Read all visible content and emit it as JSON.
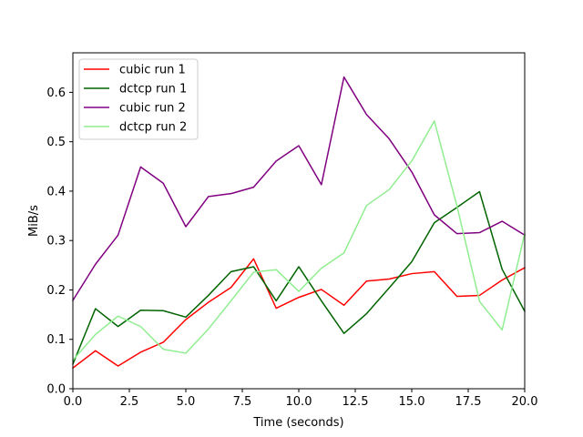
{
  "chart_data": {
    "type": "line",
    "xlabel": "Time (seconds)",
    "ylabel": "MiB/s",
    "xlim": [
      0,
      20
    ],
    "ylim": [
      0,
      0.68
    ],
    "xticks": [
      0,
      2.5,
      5,
      7.5,
      10,
      12.5,
      15,
      17.5,
      20
    ],
    "xtick_labels": [
      "0.0",
      "2.5",
      "5.0",
      "7.5",
      "10.0",
      "12.5",
      "15.0",
      "17.5",
      "20.0"
    ],
    "yticks": [
      0,
      0.1,
      0.2,
      0.3,
      0.4,
      0.5,
      0.6
    ],
    "ytick_labels": [
      "0.0",
      "0.1",
      "0.2",
      "0.3",
      "0.4",
      "0.5",
      "0.6"
    ],
    "grid": false,
    "legend_position": "top-left",
    "x": [
      0,
      1,
      2,
      3,
      4,
      5,
      6,
      7,
      8,
      9,
      10,
      11,
      12,
      13,
      14,
      15,
      16,
      17,
      18,
      19,
      20
    ],
    "series": [
      {
        "name": "cubic run 1",
        "color": "#ff0000",
        "values": [
          0.042,
          0.077,
          0.046,
          0.074,
          0.094,
          0.14,
          0.175,
          0.205,
          0.263,
          0.163,
          0.185,
          0.201,
          0.169,
          0.218,
          0.222,
          0.233,
          0.237,
          0.187,
          0.189,
          0.22,
          0.245
        ]
      },
      {
        "name": "dctcp run 1",
        "color": "#006400",
        "values": [
          0.05,
          0.162,
          0.126,
          0.159,
          0.158,
          0.145,
          0.189,
          0.237,
          0.247,
          0.178,
          0.247,
          0.178,
          0.112,
          0.152,
          0.204,
          0.257,
          0.336,
          0.367,
          0.399,
          0.242,
          0.157
        ]
      },
      {
        "name": "cubic run 2",
        "color": "#800080",
        "values": [
          0.179,
          0.252,
          0.311,
          0.449,
          0.416,
          0.328,
          0.389,
          0.395,
          0.408,
          0.461,
          0.492,
          0.413,
          0.631,
          0.555,
          0.506,
          0.439,
          0.352,
          0.314,
          0.316,
          0.339,
          0.311
        ]
      },
      {
        "name": "dctcp run 2",
        "color": "#90ee90",
        "values": [
          0.058,
          0.11,
          0.147,
          0.126,
          0.08,
          0.072,
          0.121,
          0.178,
          0.236,
          0.241,
          0.197,
          0.244,
          0.275,
          0.371,
          0.403,
          0.461,
          0.542,
          0.37,
          0.177,
          0.119,
          0.314
        ]
      }
    ]
  }
}
